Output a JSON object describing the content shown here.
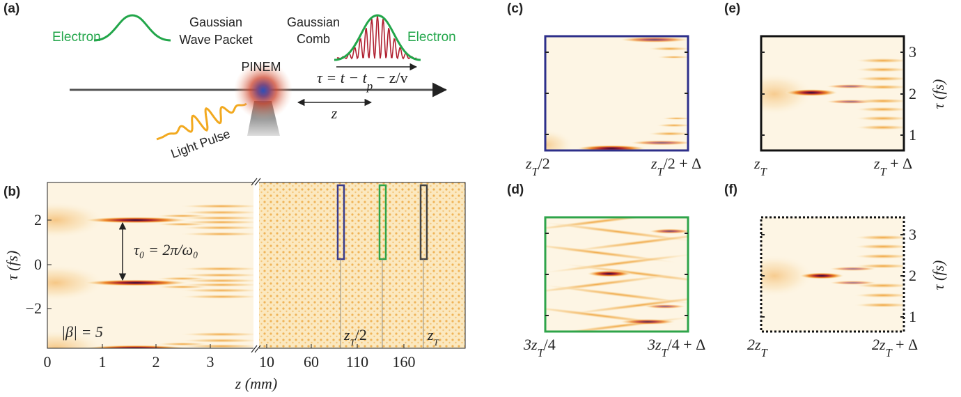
{
  "panel_a": {
    "label": "(a)",
    "electron_in": "Electron",
    "wave_packet": [
      "Gaussian",
      "Wave Packet"
    ],
    "comb": [
      "Gaussian",
      "Comb"
    ],
    "electron_out": "Electron",
    "pinem": "PINEM",
    "delay": {
      "main": "τ = t − t",
      "sub": "p",
      "rest": " − z/v"
    },
    "distance": "z",
    "light": "Light Pulse"
  },
  "panel_b": {
    "label": "(b)",
    "y_label": "τ (fs)",
    "x_label": "z (mm)",
    "y_ticks": [
      "2",
      "0",
      "−2"
    ],
    "x_ticks": [
      "0",
      "1",
      "2",
      "3",
      "10",
      "60",
      "110",
      "160"
    ],
    "coupling": "|β| = 5",
    "period": "τ₀ = 2π/ω₀",
    "talbot_half": {
      "main": "z",
      "sub": "T",
      "rest": "/2"
    },
    "talbot": {
      "main": "z",
      "sub": "T"
    }
  },
  "panel_c": {
    "label": "(c)",
    "start": {
      "main": "z",
      "sub": "T",
      "rest": "/2"
    },
    "end": {
      "main": "z",
      "sub": "T",
      "rest": "/2 + Δ"
    }
  },
  "panel_d": {
    "label": "(d)",
    "start": {
      "main": "3z",
      "sub": "T",
      "rest": "/4"
    },
    "end": {
      "main": "3z",
      "sub": "T",
      "rest": "/4 + Δ"
    }
  },
  "panel_e": {
    "label": "(e)",
    "start": {
      "main": "z",
      "sub": "T"
    },
    "end": {
      "main": "z",
      "sub": "T",
      "rest": " + Δ"
    },
    "y_ticks": [
      "3",
      "2",
      "1"
    ],
    "y_label": "τ (fs)"
  },
  "panel_f": {
    "label": "(f)",
    "start": {
      "main": "2z",
      "sub": "T"
    },
    "end": {
      "main": "2z",
      "sub": "T",
      "rest": " + Δ"
    },
    "y_ticks": [
      "3",
      "2",
      "1"
    ],
    "y_label": "τ (fs)"
  }
}
